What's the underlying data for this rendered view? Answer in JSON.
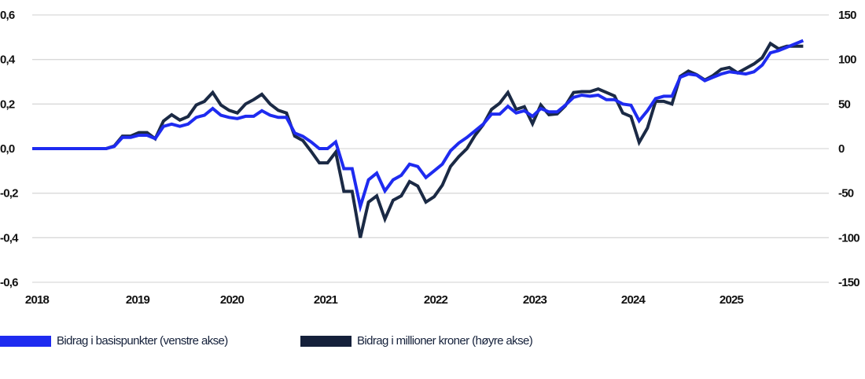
{
  "chart_data": {
    "type": "line",
    "title": "",
    "xlabel": "",
    "ylabel": "",
    "y2label": "",
    "grid": true,
    "legend_position": "bottom-left",
    "x_tick_labels": [
      "2018",
      "2019",
      "2020",
      "2021",
      "2022",
      "2023",
      "2024",
      "2025"
    ],
    "y_left": {
      "ticks": [
        "0,6",
        "0,4",
        "0,2",
        "0,0",
        "-0,2",
        "-0,4",
        "-0,6"
      ],
      "ylim": [
        -0.6,
        0.6
      ]
    },
    "y_right": {
      "ticks": [
        "150",
        "100",
        "50",
        "0",
        "-50",
        "-100",
        "-150"
      ],
      "ylim": [
        -150,
        150
      ]
    },
    "x_start": "2018-01",
    "x_frequency": "monthly",
    "series": [
      {
        "name": "Bidrag i basispunkter (venstre akse)",
        "axis": "left",
        "color": "#1E2BF0",
        "values": [
          0,
          0,
          0,
          0,
          0,
          0,
          0,
          0,
          0,
          0,
          0.01,
          0.05,
          0.05,
          0.06,
          0.06,
          0.045,
          0.1,
          0.11,
          0.1,
          0.11,
          0.14,
          0.15,
          0.18,
          0.15,
          0.14,
          0.135,
          0.145,
          0.145,
          0.17,
          0.15,
          0.14,
          0.14,
          0.07,
          0.055,
          0.03,
          0.0,
          0.0,
          0.03,
          -0.09,
          -0.09,
          -0.26,
          -0.14,
          -0.11,
          -0.19,
          -0.14,
          -0.12,
          -0.07,
          -0.08,
          -0.13,
          -0.1,
          -0.07,
          -0.01,
          0.025,
          0.05,
          0.08,
          0.11,
          0.155,
          0.155,
          0.19,
          0.16,
          0.17,
          0.145,
          0.18,
          0.165,
          0.165,
          0.195,
          0.23,
          0.24,
          0.235,
          0.24,
          0.22,
          0.22,
          0.2,
          0.195,
          0.125,
          0.17,
          0.225,
          0.235,
          0.235,
          0.32,
          0.335,
          0.33,
          0.305,
          0.32,
          0.335,
          0.345,
          0.34,
          0.335,
          0.345,
          0.375,
          0.43,
          0.44,
          0.455,
          0.47,
          0.485
        ]
      },
      {
        "name": "Bidrag i millioner kroner (høyre akse)",
        "axis": "right",
        "color": "#1B2A45",
        "values": [
          0,
          0,
          0,
          0,
          0,
          0,
          0,
          0,
          0,
          0,
          3,
          14,
          14,
          18,
          18,
          11,
          31,
          38,
          32,
          36,
          49,
          53,
          63,
          49,
          43,
          40,
          50,
          55,
          61,
          50,
          43,
          40,
          14,
          9,
          -3,
          -16,
          -16,
          -4,
          -48,
          -48,
          -100,
          -60,
          -53,
          -79,
          -58,
          -53,
          -37,
          -42,
          -60,
          -54,
          -41,
          -20,
          -9,
          0,
          15,
          27,
          44,
          51,
          63,
          44,
          47,
          28,
          49,
          38,
          39,
          48,
          63,
          64,
          64,
          67,
          63,
          59,
          40,
          36,
          7,
          23,
          53,
          53,
          50,
          81,
          87,
          83,
          77,
          82,
          89,
          91,
          85,
          90,
          95,
          102,
          118,
          112,
          115,
          115,
          115
        ]
      }
    ]
  },
  "legend": {
    "items": [
      {
        "label": "Bidrag i basispunkter (venstre akse)",
        "color": "#1E2BF0"
      },
      {
        "label": "Bidrag i millioner kroner (høyre akse)",
        "color": "#14203A"
      }
    ]
  },
  "style": {
    "grid_color": "#D9D9D9"
  }
}
